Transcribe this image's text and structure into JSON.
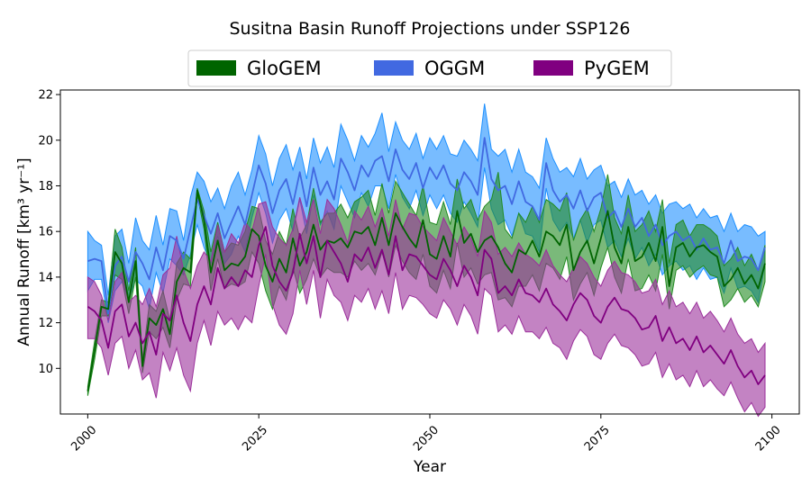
{
  "chart_data": {
    "type": "area",
    "title": "Susitna Basin Runoff Projections under SSP126",
    "xlabel": "Year",
    "ylabel": "Annual Runoff [km³ yr⁻¹]",
    "xlim": [
      1996,
      2104
    ],
    "ylim": [
      8.0,
      22.2
    ],
    "xticks": [
      2000,
      2025,
      2050,
      2075,
      2100
    ],
    "yticks": [
      10,
      12,
      14,
      16,
      18,
      20,
      22
    ],
    "legend": {
      "placement": "top-center",
      "columns": 3
    },
    "grid": false,
    "x": [
      2000,
      2001,
      2002,
      2003,
      2004,
      2005,
      2006,
      2007,
      2008,
      2009,
      2010,
      2011,
      2012,
      2013,
      2014,
      2015,
      2016,
      2017,
      2018,
      2019,
      2020,
      2021,
      2022,
      2023,
      2024,
      2025,
      2026,
      2027,
      2028,
      2029,
      2030,
      2031,
      2032,
      2033,
      2034,
      2035,
      2036,
      2037,
      2038,
      2039,
      2040,
      2041,
      2042,
      2043,
      2044,
      2045,
      2046,
      2047,
      2048,
      2049,
      2050,
      2051,
      2052,
      2053,
      2054,
      2055,
      2056,
      2057,
      2058,
      2059,
      2060,
      2061,
      2062,
      2063,
      2064,
      2065,
      2066,
      2067,
      2068,
      2069,
      2070,
      2071,
      2072,
      2073,
      2074,
      2075,
      2076,
      2077,
      2078,
      2079,
      2080,
      2081,
      2082,
      2083,
      2084,
      2085,
      2086,
      2087,
      2088,
      2089,
      2090,
      2091,
      2092,
      2093,
      2094,
      2095,
      2096,
      2097,
      2098,
      2099
    ],
    "series": [
      {
        "name": "OGGM",
        "color": "#4169E1",
        "fill": "#1E90FF",
        "mean": [
          14.7,
          14.8,
          14.7,
          12.4,
          14.5,
          14.9,
          13.8,
          15.1,
          14.6,
          13.9,
          15.3,
          14.3,
          15.8,
          15.6,
          14.8,
          16.1,
          17.4,
          16.7,
          15.9,
          16.8,
          15.7,
          16.4,
          17.1,
          16.3,
          17.6,
          18.9,
          18.1,
          16.8,
          17.8,
          18.3,
          17.2,
          18.6,
          17.1,
          18.8,
          17.6,
          18.2,
          17.4,
          19.2,
          18.6,
          17.8,
          18.9,
          18.4,
          19.1,
          19.3,
          18.2,
          19.6,
          18.7,
          18.3,
          19.0,
          17.9,
          18.8,
          18.3,
          18.9,
          18.1,
          17.8,
          18.6,
          18.2,
          17.6,
          20.1,
          18.3,
          17.8,
          18.0,
          17.2,
          18.2,
          17.3,
          17.1,
          16.5,
          19.0,
          17.8,
          17.3,
          17.6,
          17.0,
          17.8,
          16.9,
          17.5,
          17.7,
          16.6,
          16.9,
          16.2,
          17.0,
          16.2,
          16.6,
          15.8,
          16.3,
          15.4,
          15.8,
          16.0,
          15.6,
          15.8,
          15.2,
          15.7,
          15.2,
          15.3,
          14.6,
          15.6,
          14.7,
          14.9,
          14.8,
          14.3,
          15.3
        ],
        "upper": [
          16.0,
          15.6,
          15.4,
          13.2,
          15.8,
          16.1,
          14.6,
          16.6,
          15.6,
          15.2,
          16.7,
          15.4,
          17.0,
          16.9,
          15.6,
          17.5,
          18.6,
          18.2,
          17.3,
          17.9,
          17.0,
          18.0,
          18.6,
          17.6,
          18.7,
          20.2,
          19.4,
          18.0,
          19.2,
          19.8,
          18.7,
          19.7,
          18.3,
          20.1,
          19.0,
          19.7,
          18.8,
          20.7,
          20.0,
          19.1,
          20.2,
          19.7,
          20.3,
          21.2,
          19.5,
          20.8,
          20.0,
          19.6,
          20.3,
          19.2,
          20.1,
          19.6,
          20.2,
          19.4,
          19.3,
          20.0,
          19.6,
          19.1,
          21.6,
          19.6,
          19.3,
          19.6,
          18.6,
          19.6,
          18.6,
          18.4,
          17.9,
          20.1,
          19.2,
          18.6,
          18.8,
          18.4,
          19.2,
          18.3,
          18.7,
          18.9,
          18.0,
          18.2,
          17.5,
          18.3,
          17.6,
          17.8,
          17.2,
          17.6,
          16.8,
          17.2,
          17.3,
          17.0,
          17.2,
          16.6,
          17.0,
          16.6,
          16.7,
          16.0,
          16.8,
          16.0,
          16.3,
          16.2,
          15.8,
          16.0
        ],
        "lower": [
          13.4,
          13.9,
          13.9,
          12.0,
          13.4,
          13.8,
          13.0,
          13.9,
          13.6,
          12.6,
          14.2,
          13.3,
          14.8,
          14.5,
          14.1,
          15.0,
          16.3,
          15.3,
          14.6,
          15.8,
          14.6,
          15.0,
          15.8,
          15.1,
          16.6,
          17.7,
          16.8,
          15.5,
          16.5,
          17.0,
          16.0,
          17.4,
          15.9,
          17.6,
          16.3,
          16.9,
          16.1,
          18.0,
          17.3,
          16.6,
          17.7,
          17.1,
          18.0,
          18.0,
          17.0,
          18.5,
          17.5,
          17.0,
          17.8,
          16.7,
          17.6,
          17.0,
          17.6,
          16.8,
          16.4,
          17.3,
          16.8,
          16.2,
          18.8,
          17.0,
          16.3,
          16.5,
          15.8,
          16.8,
          15.9,
          15.8,
          15.1,
          17.9,
          16.5,
          16.0,
          16.4,
          15.7,
          16.5,
          15.5,
          16.3,
          16.5,
          15.3,
          15.6,
          14.9,
          15.7,
          14.8,
          15.3,
          14.5,
          15.0,
          14.1,
          14.5,
          14.7,
          14.3,
          14.5,
          13.9,
          14.4,
          13.9,
          14.0,
          13.3,
          14.4,
          13.5,
          13.6,
          13.4,
          12.9,
          14.6
        ]
      },
      {
        "name": "GloGEM",
        "color": "#006400",
        "fill": "#228B22",
        "mean": [
          9.0,
          10.8,
          12.7,
          12.6,
          15.1,
          14.6,
          12.9,
          14.7,
          10.1,
          12.2,
          11.9,
          12.6,
          11.5,
          13.8,
          14.4,
          14.2,
          17.8,
          16.5,
          14.2,
          15.6,
          14.3,
          14.6,
          14.5,
          14.9,
          16.1,
          15.8,
          14.5,
          13.8,
          14.8,
          14.2,
          15.7,
          14.5,
          15.1,
          16.3,
          15.2,
          15.6,
          15.5,
          15.7,
          15.3,
          16.0,
          15.9,
          16.2,
          15.4,
          16.6,
          15.4,
          16.8,
          16.2,
          15.7,
          15.3,
          16.5,
          15.0,
          14.8,
          15.8,
          14.9,
          16.9,
          15.5,
          15.9,
          15.1,
          15.6,
          15.8,
          15.3,
          14.6,
          14.2,
          15.2,
          15.0,
          15.6,
          14.9,
          16.0,
          15.8,
          15.4,
          16.3,
          14.3,
          15.1,
          15.6,
          14.6,
          15.7,
          16.9,
          15.3,
          14.6,
          16.2,
          14.7,
          14.9,
          15.5,
          14.7,
          16.2,
          13.6,
          15.3,
          15.5,
          14.9,
          15.3,
          15.4,
          15.1,
          14.9,
          13.6,
          13.9,
          14.4,
          13.7,
          14.1,
          13.5,
          14.6
        ],
        "upper": [
          9.2,
          11.2,
          13.0,
          12.9,
          16.1,
          15.3,
          13.4,
          15.3,
          10.4,
          12.8,
          12.5,
          13.4,
          12.1,
          14.6,
          15.1,
          14.8,
          17.9,
          16.9,
          15.1,
          16.4,
          15.1,
          15.5,
          15.4,
          16.0,
          17.1,
          17.0,
          15.6,
          15.0,
          16.0,
          15.4,
          17.0,
          15.7,
          16.3,
          17.9,
          16.4,
          16.8,
          16.8,
          17.2,
          16.6,
          17.3,
          17.5,
          17.8,
          16.7,
          18.1,
          16.8,
          18.2,
          17.7,
          17.2,
          16.7,
          18.0,
          16.4,
          16.3,
          17.3,
          16.3,
          18.3,
          17.0,
          17.4,
          16.5,
          17.1,
          17.4,
          18.6,
          16.1,
          15.7,
          16.8,
          16.4,
          17.1,
          16.4,
          17.4,
          17.2,
          16.9,
          17.7,
          15.6,
          16.5,
          17.0,
          16.0,
          17.0,
          18.5,
          16.6,
          15.9,
          17.6,
          16.0,
          16.3,
          16.9,
          16.0,
          17.4,
          14.6,
          16.3,
          16.5,
          15.8,
          16.3,
          16.3,
          16.1,
          15.8,
          14.5,
          14.8,
          15.3,
          14.5,
          15.0,
          14.3,
          15.4
        ],
        "lower": [
          8.8,
          10.4,
          12.3,
          12.3,
          14.1,
          13.9,
          12.4,
          14.0,
          9.8,
          11.6,
          11.3,
          11.8,
          10.9,
          13.0,
          13.7,
          13.6,
          17.6,
          16.1,
          13.4,
          14.8,
          13.5,
          13.7,
          13.6,
          13.8,
          15.1,
          14.6,
          13.4,
          12.6,
          13.6,
          13.0,
          14.4,
          13.3,
          13.9,
          14.8,
          14.0,
          14.4,
          14.2,
          14.2,
          14.0,
          14.7,
          14.3,
          14.6,
          14.1,
          15.1,
          14.0,
          15.4,
          14.7,
          14.2,
          13.9,
          15.0,
          13.6,
          13.3,
          14.3,
          13.5,
          15.5,
          14.0,
          14.4,
          13.7,
          14.1,
          14.2,
          13.0,
          13.1,
          12.7,
          13.6,
          13.6,
          14.1,
          13.4,
          14.6,
          14.4,
          13.9,
          14.9,
          13.0,
          13.7,
          14.2,
          13.2,
          14.4,
          15.3,
          14.0,
          13.3,
          14.8,
          13.4,
          13.5,
          14.1,
          13.4,
          15.0,
          12.6,
          14.3,
          14.5,
          14.0,
          14.3,
          14.5,
          14.1,
          14.0,
          12.7,
          13.0,
          13.5,
          12.9,
          13.2,
          12.7,
          13.8
        ]
      },
      {
        "name": "PyGEM",
        "color": "#800080",
        "fill": "#9B309B",
        "mean": [
          12.7,
          12.5,
          12.1,
          10.9,
          12.5,
          12.8,
          11.4,
          12.0,
          11.1,
          11.6,
          10.6,
          12.4,
          12.1,
          13.2,
          12.0,
          11.2,
          12.8,
          13.6,
          12.8,
          14.4,
          13.5,
          14.0,
          13.6,
          14.3,
          14.0,
          15.4,
          16.2,
          14.5,
          13.8,
          13.4,
          14.2,
          15.9,
          14.6,
          15.8,
          14.0,
          15.6,
          15.1,
          14.6,
          13.8,
          15.0,
          14.7,
          15.3,
          14.4,
          15.2,
          14.1,
          15.8,
          14.3,
          15.0,
          14.9,
          14.5,
          14.1,
          13.9,
          14.8,
          14.3,
          13.6,
          14.5,
          14.0,
          13.2,
          15.2,
          14.8,
          13.3,
          13.6,
          13.2,
          13.9,
          13.3,
          13.2,
          12.9,
          13.5,
          12.8,
          12.5,
          12.1,
          12.8,
          13.3,
          13.0,
          12.3,
          12.0,
          12.7,
          13.1,
          12.6,
          12.5,
          12.2,
          11.7,
          11.8,
          12.3,
          11.2,
          11.8,
          11.1,
          11.3,
          10.8,
          11.4,
          10.7,
          11.0,
          10.6,
          10.2,
          10.8,
          10.1,
          9.6,
          9.9,
          9.3,
          9.7
        ],
        "upper": [
          14.0,
          13.8,
          13.2,
          12.1,
          13.8,
          14.2,
          12.9,
          13.2,
          12.8,
          13.5,
          12.7,
          14.1,
          14.4,
          15.8,
          14.3,
          13.5,
          14.5,
          15.1,
          14.7,
          16.3,
          15.1,
          15.9,
          15.5,
          16.4,
          16.0,
          17.2,
          17.3,
          16.2,
          15.7,
          15.4,
          16.1,
          17.5,
          16.4,
          17.4,
          15.9,
          17.4,
          17.0,
          16.3,
          15.5,
          16.9,
          16.5,
          17.1,
          16.2,
          17.0,
          15.8,
          17.4,
          16.1,
          16.8,
          16.7,
          16.2,
          15.9,
          15.6,
          16.6,
          16.0,
          15.4,
          16.2,
          15.7,
          14.9,
          16.9,
          16.4,
          15.0,
          15.3,
          14.9,
          15.5,
          15.0,
          14.8,
          14.5,
          15.2,
          14.5,
          14.1,
          13.8,
          14.4,
          14.9,
          14.6,
          14.0,
          13.6,
          14.3,
          14.7,
          14.2,
          14.1,
          13.8,
          13.3,
          13.4,
          13.9,
          12.8,
          13.4,
          12.7,
          12.9,
          12.4,
          12.9,
          12.2,
          12.5,
          12.1,
          11.6,
          12.2,
          11.5,
          11.1,
          11.3,
          10.7,
          11.1
        ],
        "lower": [
          11.3,
          11.3,
          10.9,
          9.7,
          11.1,
          11.4,
          10.0,
          10.8,
          9.5,
          9.8,
          8.7,
          10.7,
          9.9,
          10.9,
          9.7,
          9.0,
          11.1,
          12.1,
          11.0,
          12.5,
          11.9,
          12.2,
          11.7,
          12.3,
          12.0,
          13.6,
          15.0,
          12.8,
          11.9,
          11.5,
          12.4,
          14.3,
          12.8,
          14.3,
          12.2,
          13.9,
          13.2,
          12.9,
          12.1,
          13.2,
          12.9,
          13.5,
          12.6,
          13.4,
          12.4,
          14.2,
          12.6,
          13.2,
          13.1,
          12.8,
          12.4,
          12.2,
          13.0,
          12.6,
          11.9,
          12.8,
          12.3,
          11.5,
          13.5,
          13.2,
          11.6,
          11.9,
          11.5,
          12.3,
          11.6,
          11.6,
          11.3,
          11.8,
          11.1,
          10.9,
          10.4,
          11.2,
          11.7,
          11.4,
          10.6,
          10.4,
          11.1,
          11.5,
          11.0,
          10.9,
          10.6,
          10.1,
          10.2,
          10.7,
          9.6,
          10.2,
          9.5,
          9.7,
          9.2,
          9.9,
          9.2,
          9.5,
          9.1,
          8.8,
          9.4,
          8.7,
          8.1,
          8.5,
          7.9,
          8.3
        ]
      }
    ]
  }
}
